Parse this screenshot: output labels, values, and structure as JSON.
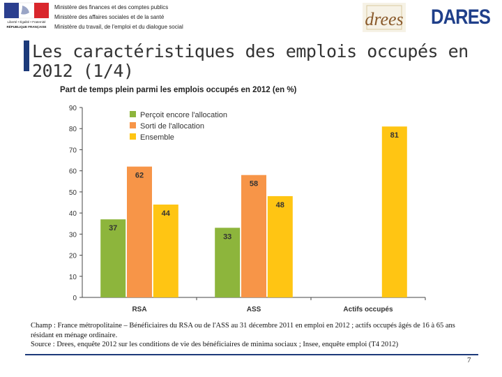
{
  "header": {
    "republic_logo_text": [
      "Liberté • Égalité • Fraternité",
      "RÉPUBLIQUE FRANÇAISE"
    ],
    "ministries": [
      "Ministère des finances et des comptes publics",
      "Ministère des affaires sociales et de la santé",
      "Ministère du travail, de l'emploi et du dialogue social"
    ],
    "drees_logo": "drees",
    "dares_logo": "DARES"
  },
  "slide": {
    "title": "Les caractéristiques des emplois occupés en 2012 (1/4)"
  },
  "colors": {
    "series1": "#8db53c",
    "series2": "#f79548",
    "series3": "#ffc513",
    "title_bar": "#1c3a7a"
  },
  "chart_data": {
    "type": "bar",
    "title": "Part de temps plein parmi les emplois occupés en 2012 (en %)",
    "categories": [
      "RSA",
      "ASS",
      "Actifs occupés"
    ],
    "series": [
      {
        "name": "Perçoit encore l'allocation",
        "values": [
          37,
          33,
          null
        ]
      },
      {
        "name": "Sorti de l'allocation",
        "values": [
          62,
          58,
          null
        ]
      },
      {
        "name": "Ensemble",
        "values": [
          44,
          48,
          81
        ]
      }
    ],
    "ylim": [
      0,
      90
    ],
    "yticks": [
      0,
      10,
      20,
      30,
      40,
      50,
      60,
      70,
      80,
      90
    ],
    "legend": "top-left",
    "grid": false
  },
  "notes": {
    "champ": "Champ : France métropolitaine – Bénéficiaires du RSA ou de l'ASS au 31 décembre 2011 en emploi en 2012 ; actifs occupés âgés de 16 à 65 ans résidant en ménage ordinaire.",
    "source": "Source : Drees, enquête 2012 sur les conditions de vie des bénéficiaires de minima sociaux ; Insee, enquête emploi (T4 2012)"
  },
  "page_number": "7"
}
